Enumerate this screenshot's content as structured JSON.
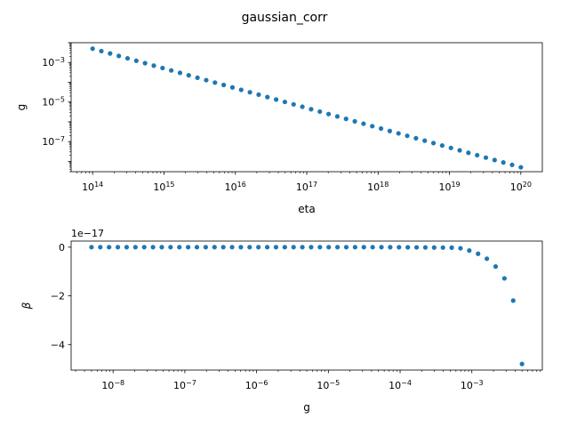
{
  "figure": {
    "title": "gaussian_corr"
  },
  "chart_data": [
    {
      "type": "scatter",
      "title": "",
      "xlabel": "eta",
      "ylabel": "g",
      "xscale": "log",
      "yscale": "log",
      "xlim": [
        50000000000000.0,
        2e+20
      ],
      "ylim": [
        3e-09,
        0.01
      ],
      "x_tick_labels": [
        "10^14",
        "10^15",
        "10^16",
        "10^17",
        "10^18",
        "10^19",
        "10^20"
      ],
      "y_tick_labels": [
        "10^−3",
        "10^−5",
        "10^−7"
      ],
      "grid": false,
      "marker_color": "#1f77b4",
      "series": [
        {
          "x_range": [
            100000000000000.0,
            1e+20
          ],
          "n_points": 50,
          "spacing": "log-uniform",
          "y_at_x_range": [
            0.005,
            5e-09
          ],
          "relation": "power-law"
        }
      ]
    },
    {
      "type": "scatter",
      "title": "",
      "xlabel": "g",
      "ylabel": "β",
      "xscale": "log",
      "yscale": "linear",
      "y_offset_label": "1e−17",
      "xlim": [
        2.6e-09,
        0.0096
      ],
      "ylim": [
        -5.05e-17,
        2.5e-18
      ],
      "x_tick_labels": [
        "10^−8",
        "10^−7",
        "10^−6",
        "10^−5",
        "10^−4",
        "10^−3"
      ],
      "y_tick_labels": [
        "0",
        "−2",
        "−4"
      ],
      "grid": false,
      "marker_color": "#1f77b4",
      "series": [
        {
          "x": [
            5e-09,
            5.38e-08,
            5.8e-07,
            6.25e-06,
            6.73e-05,
            0.000536,
            0.000724,
            0.000978,
            0.00132,
            0.00178,
            0.00241,
            0.00325,
            0.00439,
            0.005
          ],
          "y": [
            0,
            0,
            0,
            0,
            0,
            -2e-19,
            -5e-19,
            -1.6e-18,
            -3.1e-18,
            -5.5e-18,
            -9.5e-18,
            -1.55e-17,
            -2.85e-17,
            -4.8e-17
          ]
        }
      ]
    }
  ]
}
